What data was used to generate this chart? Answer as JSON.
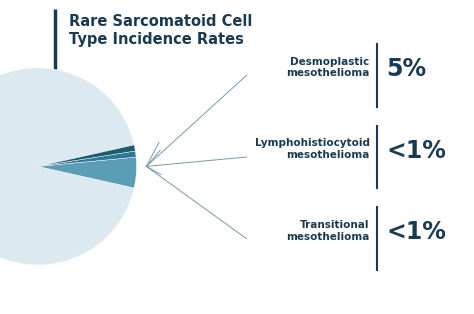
{
  "title_line1": "Rare Sarcomatoid Cell",
  "title_line2": "Type Incidence Rates",
  "title_color": "#1a3a52",
  "title_fontsize": 10.5,
  "background_color": "#ffffff",
  "pie_colors": [
    "#dce9f0",
    "#5b9db5",
    "#2e7a96",
    "#1e5c73"
  ],
  "pie_values": [
    93,
    5,
    1,
    1
  ],
  "labels": [
    {
      "name": "Desmoplastic\nmesothelioma",
      "value": "5%"
    },
    {
      "name": "Lymphohistiocytoid\nmesothelioma",
      "value": "<1%"
    },
    {
      "name": "Transitional\nmesothelioma",
      "value": "<1%"
    }
  ],
  "label_color": "#1a3a52",
  "label_fontsize": 7.5,
  "value_fontsize": 17,
  "connector_color": "#7a9aaa",
  "divider_color": "#1a3a52",
  "title_bar_color": "#1a3a52"
}
